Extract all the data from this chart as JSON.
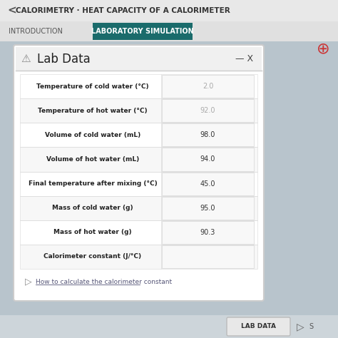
{
  "title_bar": "CALORIMETRY · HEAT CAPACITY OF A CALORIMETER",
  "tab1": "INTRODUCTION",
  "tab2": "LABORATORY SIMULATION",
  "dialog_title": "Lab Data",
  "rows": [
    {
      "label": "Temperature of cold water (°C)",
      "value": "2.0",
      "grayed": true
    },
    {
      "label": "Temperature of hot water (°C)",
      "value": "92.0",
      "grayed": true
    },
    {
      "label": "Volume of cold water (mL)",
      "value": "98.0",
      "grayed": false
    },
    {
      "label": "Volume of hot water (mL)",
      "value": "94.0",
      "grayed": false
    },
    {
      "label": "Final temperature after mixing (°C)",
      "value": "45.0",
      "grayed": false
    },
    {
      "label": "Mass of cold water (g)",
      "value": "95.0",
      "grayed": false
    },
    {
      "label": "Mass of hot water (g)",
      "value": "90.3",
      "grayed": false
    },
    {
      "label": "Calorimeter constant (J/°C)",
      "value": "",
      "grayed": false
    }
  ],
  "link_text": "How to calculate the calorimeter constant",
  "lab_data_btn": "LAB DATA",
  "bg_color": "#b8c4cc",
  "tab_active_bg": "#1a6b6b",
  "tab_active_fg": "#ffffff",
  "tab_inactive_fg": "#555555",
  "value_grayed_color": "#aaaaaa",
  "value_normal_color": "#333333",
  "label_color": "#222222",
  "link_color": "#555577"
}
